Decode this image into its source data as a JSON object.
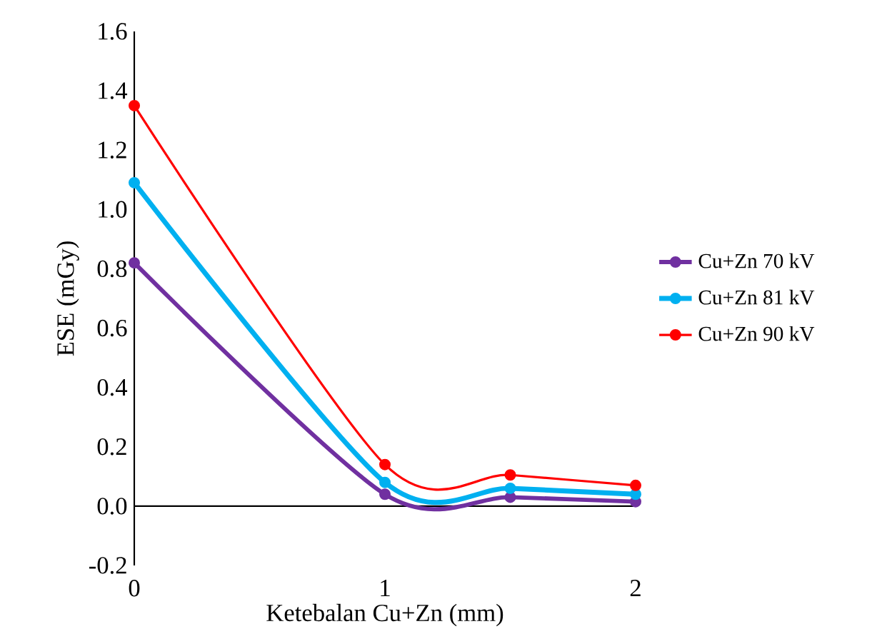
{
  "chart_data": {
    "type": "line",
    "xlabel": "Ketebalan Cu+Zn (mm)",
    "ylabel": "ESE (mGy)",
    "x": [
      0,
      1,
      1.5,
      2
    ],
    "series": [
      {
        "name": "Cu+Zn 70 kV",
        "color": "#7030a0",
        "values": [
          0.82,
          0.04,
          0.03,
          0.015
        ]
      },
      {
        "name": "Cu+Zn 81 kV",
        "color": "#00b0f0",
        "values": [
          1.09,
          0.08,
          0.06,
          0.04
        ]
      },
      {
        "name": "Cu+Zn 90 kV",
        "color": "#ff0000",
        "values": [
          1.35,
          0.14,
          0.105,
          0.07
        ]
      }
    ],
    "xlim": [
      0,
      2
    ],
    "xticks": [
      0,
      1,
      2
    ],
    "ylim": [
      -0.2,
      1.6
    ],
    "yticks": [
      {
        "value": -0.2,
        "label": "-0.2"
      },
      {
        "value": 0,
        "label": "0.0"
      },
      {
        "value": 0.2,
        "label": "0.2"
      },
      {
        "value": 0.4,
        "label": "0.4"
      },
      {
        "value": 0.6,
        "label": "0.6"
      },
      {
        "value": 0.8,
        "label": "0.8"
      },
      {
        "value": 1.0,
        "label": "1.0"
      },
      {
        "value": 1.2,
        "label": "1.2"
      },
      {
        "value": 1.4,
        "label": "1.4"
      },
      {
        "value": 1.6,
        "label": "1.6"
      }
    ],
    "legend": "right",
    "marker": "circle",
    "line_style": "solid"
  }
}
